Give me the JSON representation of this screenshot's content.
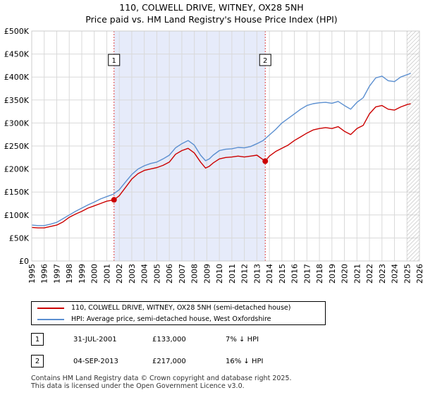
{
  "chart_data": {
    "type": "line",
    "title": "110, COLWELL DRIVE, WITNEY, OX28 5NH",
    "subtitle": "Price paid vs. HM Land Registry's House Price Index (HPI)",
    "xlabel": "",
    "ylabel": "",
    "xlim": [
      1995,
      2026
    ],
    "ylim": [
      0,
      500000
    ],
    "x_ticks": [
      1995,
      1996,
      1997,
      1998,
      1999,
      2000,
      2001,
      2002,
      2003,
      2004,
      2005,
      2006,
      2007,
      2008,
      2009,
      2010,
      2011,
      2012,
      2013,
      2014,
      2015,
      2016,
      2017,
      2018,
      2019,
      2020,
      2021,
      2022,
      2023,
      2024,
      2025,
      2026
    ],
    "x_tick_labels": [
      "1995",
      "1996",
      "1997",
      "1998",
      "1999",
      "2000",
      "2001",
      "2002",
      "2003",
      "2004",
      "2005",
      "2006",
      "2007",
      "2008",
      "2009",
      "2010",
      "2011",
      "2012",
      "2013",
      "2014",
      "2015",
      "2016",
      "2017",
      "2018",
      "2019",
      "2020",
      "2021",
      "2022",
      "2023",
      "2024",
      "2025",
      "2026"
    ],
    "y_ticks": [
      0,
      50000,
      100000,
      150000,
      200000,
      250000,
      300000,
      350000,
      400000,
      450000,
      500000
    ],
    "y_tick_labels": [
      "£0",
      "£50K",
      "£100K",
      "£150K",
      "£200K",
      "£250K",
      "£300K",
      "£350K",
      "£400K",
      "£450K",
      "£500K"
    ],
    "grid": true,
    "shaded_period": [
      2001.58,
      2013.67
    ],
    "forecast_start": 2025.0,
    "series": [
      {
        "name": "110, COLWELL DRIVE, WITNEY, OX28 5NH (semi-detached house)",
        "color": "#cc0000",
        "x": [
          1995.0,
          1995.5,
          1996.0,
          1996.5,
          1997.0,
          1997.5,
          1998.0,
          1998.5,
          1999.0,
          1999.5,
          2000.0,
          2000.5,
          2001.0,
          2001.58,
          2002.0,
          2002.5,
          2003.0,
          2003.5,
          2004.0,
          2004.5,
          2005.0,
          2005.5,
          2006.0,
          2006.5,
          2007.0,
          2007.5,
          2008.0,
          2008.5,
          2008.9,
          2009.2,
          2009.5,
          2010.0,
          2010.5,
          2011.0,
          2011.5,
          2012.0,
          2012.5,
          2013.0,
          2013.67,
          2014.0,
          2014.5,
          2015.0,
          2015.5,
          2016.0,
          2016.5,
          2017.0,
          2017.5,
          2018.0,
          2018.5,
          2019.0,
          2019.5,
          2020.0,
          2020.5,
          2021.0,
          2021.5,
          2022.0,
          2022.5,
          2023.0,
          2023.5,
          2024.0,
          2024.5,
          2025.0,
          2025.3
        ],
        "y": [
          73000,
          72000,
          72000,
          75000,
          78000,
          85000,
          95000,
          102000,
          108000,
          115000,
          120000,
          125000,
          130000,
          133000,
          142000,
          160000,
          178000,
          190000,
          197000,
          200000,
          203000,
          208000,
          215000,
          232000,
          240000,
          245000,
          235000,
          215000,
          202000,
          206000,
          213000,
          222000,
          225000,
          226000,
          228000,
          226000,
          228000,
          230000,
          217000,
          228000,
          238000,
          245000,
          252000,
          262000,
          270000,
          278000,
          285000,
          288000,
          290000,
          288000,
          292000,
          282000,
          275000,
          288000,
          295000,
          320000,
          335000,
          338000,
          330000,
          328000,
          335000,
          340000,
          342000
        ]
      },
      {
        "name": "HPI: Average price, semi-detached house, West Oxfordshire",
        "color": "#5b8fd0",
        "x": [
          1995.0,
          1995.5,
          1996.0,
          1996.5,
          1997.0,
          1997.5,
          1998.0,
          1998.5,
          1999.0,
          1999.5,
          2000.0,
          2000.5,
          2001.0,
          2001.5,
          2002.0,
          2002.5,
          2003.0,
          2003.5,
          2004.0,
          2004.5,
          2005.0,
          2005.5,
          2006.0,
          2006.5,
          2007.0,
          2007.5,
          2008.0,
          2008.5,
          2008.9,
          2009.2,
          2009.5,
          2010.0,
          2010.5,
          2011.0,
          2011.5,
          2012.0,
          2012.5,
          2013.0,
          2013.5,
          2014.0,
          2014.5,
          2015.0,
          2015.5,
          2016.0,
          2016.5,
          2017.0,
          2017.5,
          2018.0,
          2018.5,
          2019.0,
          2019.5,
          2020.0,
          2020.5,
          2021.0,
          2021.5,
          2022.0,
          2022.5,
          2023.0,
          2023.5,
          2024.0,
          2024.5,
          2025.0,
          2025.3
        ],
        "y": [
          78000,
          77000,
          77000,
          80000,
          84000,
          92000,
          100000,
          108000,
          115000,
          122000,
          128000,
          135000,
          140000,
          145000,
          155000,
          172000,
          188000,
          200000,
          207000,
          212000,
          215000,
          222000,
          230000,
          246000,
          255000,
          262000,
          252000,
          230000,
          218000,
          222000,
          230000,
          240000,
          243000,
          244000,
          247000,
          246000,
          249000,
          255000,
          262000,
          274000,
          286000,
          300000,
          310000,
          320000,
          330000,
          338000,
          342000,
          344000,
          345000,
          343000,
          347000,
          338000,
          330000,
          345000,
          355000,
          380000,
          398000,
          402000,
          392000,
          390000,
          400000,
          405000,
          408000
        ]
      }
    ],
    "sale_markers": [
      {
        "label": "1",
        "x": 2001.58,
        "y": 133000
      },
      {
        "label": "2",
        "x": 2013.67,
        "y": 217000
      }
    ]
  },
  "legend": {
    "items": [
      {
        "label": "110, COLWELL DRIVE, WITNEY, OX28 5NH (semi-detached house)",
        "color": "#cc0000"
      },
      {
        "label": "HPI: Average price, semi-detached house, West Oxfordshire",
        "color": "#5b8fd0"
      }
    ]
  },
  "sales": [
    {
      "num": "1",
      "date": "31-JUL-2001",
      "price": "£133,000",
      "hpi": "7% ↓ HPI"
    },
    {
      "num": "2",
      "date": "04-SEP-2013",
      "price": "£217,000",
      "hpi": "16% ↓ HPI"
    }
  ],
  "footer": {
    "line1": "Contains HM Land Registry data © Crown copyright and database right 2025.",
    "line2": "This data is licensed under the Open Government Licence v3.0."
  }
}
